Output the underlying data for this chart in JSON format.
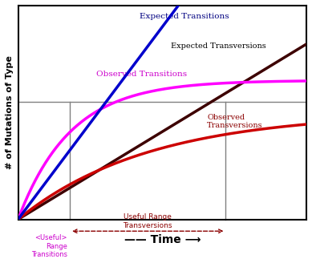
{
  "title": "",
  "ylabel": "# of Mutations of Type",
  "xlabel_text": "Time",
  "xlim": [
    0,
    10
  ],
  "ylim": [
    0,
    10
  ],
  "background_color": "#ffffff",
  "plot_bg_color": "#ffffff",
  "border_color": "#000000",
  "lines": {
    "expected_transitions": {
      "color": "#0000cc",
      "label": "Expected Transitions",
      "lw": 2.5
    },
    "observed_transitions": {
      "color": "#ff00ff",
      "label": "Observed Transitions",
      "lw": 2.5
    },
    "expected_transversions": {
      "color": "#3d0000",
      "label": "Expected Transversions",
      "lw": 2.5
    },
    "observed_transversions": {
      "color": "#cc0000",
      "label": "Observed Transversions",
      "lw": 2.5
    }
  },
  "useful_range_transitions_x": 1.8,
  "useful_range_transversions_x": 7.2,
  "horizontal_line_y": 5.5,
  "label_colors": {
    "expected_transitions": "#000080",
    "observed_transitions": "#cc00cc",
    "expected_transversions": "#000000",
    "observed_transversions": "#8b0000",
    "useful_range_transitions": "#cc00cc",
    "useful_range_transversions": "#8b0000"
  },
  "curve_params": {
    "exp_trans_slope": 1.8,
    "obs_trans_sat": 6.5,
    "obs_trans_rate": 0.55,
    "exp_transv_slope": 0.82,
    "obs_transv_sat": 5.0,
    "obs_transv_rate": 0.22
  }
}
